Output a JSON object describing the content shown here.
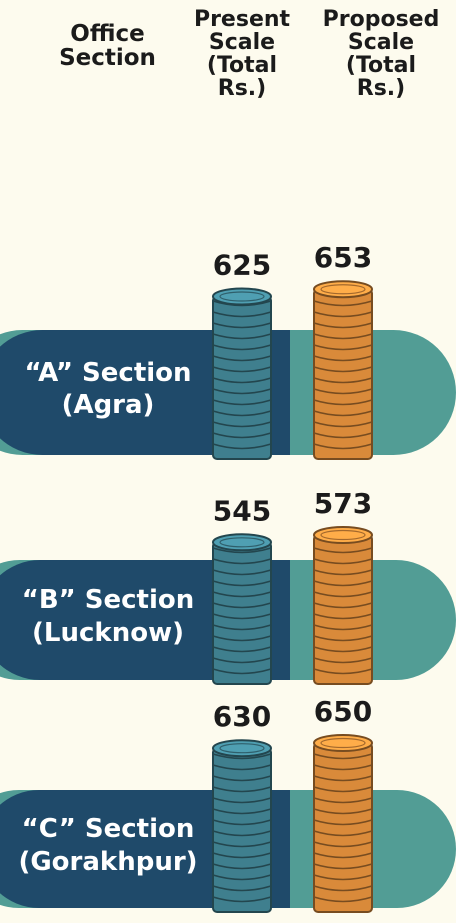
{
  "chart_data": {
    "type": "coin-stack",
    "category_header": "Office Section",
    "categories": [
      "“A” Section (Agra)",
      "“B” Section (Lucknow)",
      "“C” Section (Gorakhpur)"
    ],
    "series": [
      {
        "name": "Present Scale (Total Rs.)",
        "color": "#3f7f8e",
        "values": [
          625,
          545,
          630
        ]
      },
      {
        "name": "Proposed Scale (Total Rs.)",
        "color": "#d98a3a",
        "values": [
          653,
          573,
          650
        ]
      }
    ]
  }
}
